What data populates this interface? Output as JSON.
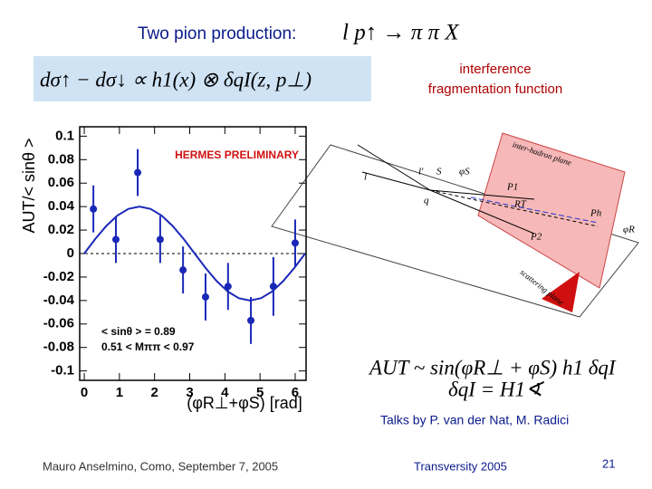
{
  "slide": {
    "title": "Two pion production:",
    "process": "l p↑ → π π X",
    "formula": "dσ↑ − dσ↓ ∝ h1(x) ⊗ δqI(z, p⊥)",
    "note": [
      "interference",
      "fragmentation function"
    ],
    "result": [
      "AUT ~ sin(φR⊥ + φS) h1 δqI",
      "δqI = H1∢"
    ],
    "credit": "Talks by P. van der Nat, M. Radici",
    "footer": {
      "author": "Mauro Anselmino, Como, September 7, 2005",
      "event": "Transversity 2005",
      "page": "21"
    }
  },
  "diagram": {
    "plane_labels": [
      "inter-hadron plane",
      "scattering plane"
    ],
    "labels": [
      "l",
      "l'",
      "S",
      "φS",
      "q",
      "P1",
      "RT",
      "Ph",
      "P2",
      "φR"
    ]
  },
  "chart_data": {
    "type": "scatter",
    "annotations": [
      "HERMES PRELIMINARY",
      "< sinθ > = 0.89",
      "0.51 < Mππ < 0.97"
    ],
    "x_label": "(φR⊥+φS) [rad]",
    "y_label": "AUT/< sinθ >",
    "xlim": [
      -0.13,
      6.31
    ],
    "ylim": [
      -0.108,
      0.108
    ],
    "xticks": [
      0,
      1,
      2,
      3,
      4,
      5,
      6
    ],
    "yticks": [
      0.1,
      0.08,
      0.06,
      0.04,
      0.02,
      0,
      -0.02,
      -0.04,
      -0.06,
      -0.08,
      -0.1
    ],
    "x": [
      0.26,
      0.9,
      1.52,
      2.16,
      2.81,
      3.45,
      4.09,
      4.74,
      5.38,
      6.0
    ],
    "values": [
      0.038,
      0.012,
      0.069,
      0.012,
      -0.014,
      -0.037,
      -0.028,
      -0.057,
      -0.028,
      0.009
    ],
    "errors": [
      0.02,
      0.02,
      0.02,
      0.02,
      0.02,
      0.02,
      0.02,
      0.02,
      0.025,
      0.02
    ],
    "color": "#1a28b8",
    "curve": {
      "color": "#1a28b8",
      "x": [
        0,
        0.314,
        0.628,
        0.942,
        1.257,
        1.571,
        1.885,
        2.199,
        2.513,
        2.827,
        3.142,
        3.456,
        3.77,
        4.084,
        4.398,
        4.712,
        5.027,
        5.341,
        5.655,
        5.969,
        6.283
      ],
      "values": [
        0,
        0.0124,
        0.0235,
        0.0324,
        0.038,
        0.04,
        0.038,
        0.0324,
        0.0235,
        0.0124,
        0,
        -0.0124,
        -0.0235,
        -0.0324,
        -0.038,
        -0.04,
        -0.038,
        -0.0324,
        -0.0235,
        -0.0124,
        0
      ]
    }
  }
}
